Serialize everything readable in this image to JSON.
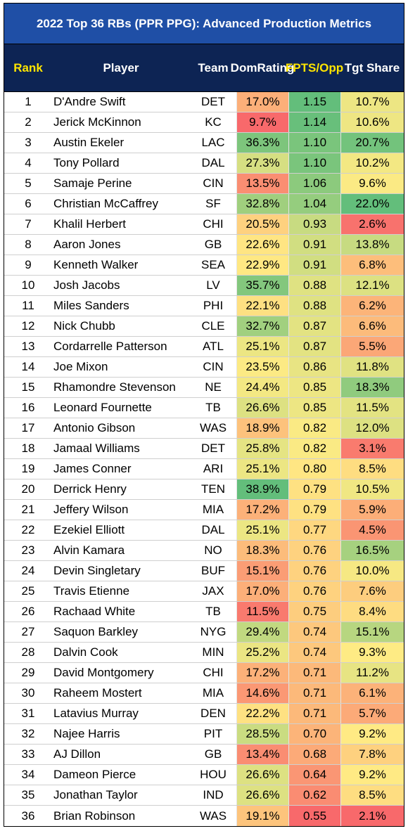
{
  "title": "2022 Top 36 RBs (PPR PPG): Advanced Production Metrics",
  "headers": {
    "rank": "Rank",
    "player": "Player",
    "team": "Team",
    "dom_line1": "Dom",
    "dom_line2": "Rating",
    "fpts_line1": "FPTS/",
    "fpts_line2": "Opp",
    "tgt": "Tgt Share"
  },
  "colors": {
    "title_bg": "#1f4fa6",
    "header_bg": "#0d2454",
    "header_highlight": "#ffe500",
    "scale_low": "#f8696b",
    "scale_mid": "#ffeb84",
    "scale_high": "#63be7b"
  },
  "rows": [
    {
      "rank": "1",
      "player": "D'Andre Swift",
      "team": "DET",
      "dom": "17.0%",
      "fpts": "1.15",
      "tgt": "10.7%"
    },
    {
      "rank": "2",
      "player": "Jerick McKinnon",
      "team": "KC",
      "dom": "9.7%",
      "fpts": "1.14",
      "tgt": "10.6%"
    },
    {
      "rank": "3",
      "player": "Austin Ekeler",
      "team": "LAC",
      "dom": "36.3%",
      "fpts": "1.10",
      "tgt": "20.7%"
    },
    {
      "rank": "4",
      "player": "Tony Pollard",
      "team": "DAL",
      "dom": "27.3%",
      "fpts": "1.10",
      "tgt": "10.2%"
    },
    {
      "rank": "5",
      "player": "Samaje Perine",
      "team": "CIN",
      "dom": "13.5%",
      "fpts": "1.06",
      "tgt": "9.6%"
    },
    {
      "rank": "6",
      "player": "Christian McCaffrey",
      "team": "SF",
      "dom": "32.8%",
      "fpts": "1.04",
      "tgt": "22.0%"
    },
    {
      "rank": "7",
      "player": "Khalil Herbert",
      "team": "CHI",
      "dom": "20.5%",
      "fpts": "0.93",
      "tgt": "2.6%"
    },
    {
      "rank": "8",
      "player": "Aaron Jones",
      "team": "GB",
      "dom": "22.6%",
      "fpts": "0.91",
      "tgt": "13.8%"
    },
    {
      "rank": "9",
      "player": "Kenneth Walker",
      "team": "SEA",
      "dom": "22.9%",
      "fpts": "0.91",
      "tgt": "6.8%"
    },
    {
      "rank": "10",
      "player": "Josh Jacobs",
      "team": "LV",
      "dom": "35.7%",
      "fpts": "0.88",
      "tgt": "12.1%"
    },
    {
      "rank": "11",
      "player": "Miles Sanders",
      "team": "PHI",
      "dom": "22.1%",
      "fpts": "0.88",
      "tgt": "6.2%"
    },
    {
      "rank": "12",
      "player": "Nick Chubb",
      "team": "CLE",
      "dom": "32.7%",
      "fpts": "0.87",
      "tgt": "6.6%"
    },
    {
      "rank": "13",
      "player": "Cordarrelle Patterson",
      "team": "ATL",
      "dom": "25.1%",
      "fpts": "0.87",
      "tgt": "5.5%"
    },
    {
      "rank": "14",
      "player": "Joe Mixon",
      "team": "CIN",
      "dom": "23.5%",
      "fpts": "0.86",
      "tgt": "11.8%"
    },
    {
      "rank": "15",
      "player": "Rhamondre Stevenson",
      "team": "NE",
      "dom": "24.4%",
      "fpts": "0.85",
      "tgt": "18.3%"
    },
    {
      "rank": "16",
      "player": "Leonard Fournette",
      "team": "TB",
      "dom": "26.6%",
      "fpts": "0.85",
      "tgt": "11.5%"
    },
    {
      "rank": "17",
      "player": "Antonio Gibson",
      "team": "WAS",
      "dom": "18.9%",
      "fpts": "0.82",
      "tgt": "12.0%"
    },
    {
      "rank": "18",
      "player": "Jamaal Williams",
      "team": "DET",
      "dom": "25.8%",
      "fpts": "0.82",
      "tgt": "3.1%"
    },
    {
      "rank": "19",
      "player": "James Conner",
      "team": "ARI",
      "dom": "25.1%",
      "fpts": "0.80",
      "tgt": "8.5%"
    },
    {
      "rank": "20",
      "player": "Derrick Henry",
      "team": "TEN",
      "dom": "38.9%",
      "fpts": "0.79",
      "tgt": "10.5%"
    },
    {
      "rank": "21",
      "player": "Jeffery Wilson",
      "team": "MIA",
      "dom": "17.2%",
      "fpts": "0.79",
      "tgt": "5.9%"
    },
    {
      "rank": "22",
      "player": "Ezekiel Elliott",
      "team": "DAL",
      "dom": "25.1%",
      "fpts": "0.77",
      "tgt": "4.5%"
    },
    {
      "rank": "23",
      "player": "Alvin Kamara",
      "team": "NO",
      "dom": "18.3%",
      "fpts": "0.76",
      "tgt": "16.5%"
    },
    {
      "rank": "24",
      "player": "Devin Singletary",
      "team": "BUF",
      "dom": "15.1%",
      "fpts": "0.76",
      "tgt": "10.0%"
    },
    {
      "rank": "25",
      "player": "Travis Etienne",
      "team": "JAX",
      "dom": "17.0%",
      "fpts": "0.76",
      "tgt": "7.6%"
    },
    {
      "rank": "26",
      "player": "Rachaad White",
      "team": "TB",
      "dom": "11.5%",
      "fpts": "0.75",
      "tgt": "8.4%"
    },
    {
      "rank": "27",
      "player": "Saquon Barkley",
      "team": "NYG",
      "dom": "29.4%",
      "fpts": "0.74",
      "tgt": "15.1%"
    },
    {
      "rank": "28",
      "player": "Dalvin Cook",
      "team": "MIN",
      "dom": "25.2%",
      "fpts": "0.74",
      "tgt": "9.3%"
    },
    {
      "rank": "29",
      "player": "David Montgomery",
      "team": "CHI",
      "dom": "17.2%",
      "fpts": "0.71",
      "tgt": "11.2%"
    },
    {
      "rank": "30",
      "player": "Raheem Mostert",
      "team": "MIA",
      "dom": "14.6%",
      "fpts": "0.71",
      "tgt": "6.1%"
    },
    {
      "rank": "31",
      "player": "Latavius Murray",
      "team": "DEN",
      "dom": "22.2%",
      "fpts": "0.71",
      "tgt": "5.7%"
    },
    {
      "rank": "32",
      "player": "Najee Harris",
      "team": "PIT",
      "dom": "28.5%",
      "fpts": "0.70",
      "tgt": "9.2%"
    },
    {
      "rank": "33",
      "player": "AJ Dillon",
      "team": "GB",
      "dom": "13.4%",
      "fpts": "0.68",
      "tgt": "7.8%"
    },
    {
      "rank": "34",
      "player": "Dameon Pierce",
      "team": "HOU",
      "dom": "26.6%",
      "fpts": "0.64",
      "tgt": "9.2%"
    },
    {
      "rank": "35",
      "player": "Jonathan Taylor",
      "team": "IND",
      "dom": "26.6%",
      "fpts": "0.62",
      "tgt": "8.5%"
    },
    {
      "rank": "36",
      "player": "Brian Robinson",
      "team": "WAS",
      "dom": "19.1%",
      "fpts": "0.55",
      "tgt": "2.1%"
    }
  ]
}
